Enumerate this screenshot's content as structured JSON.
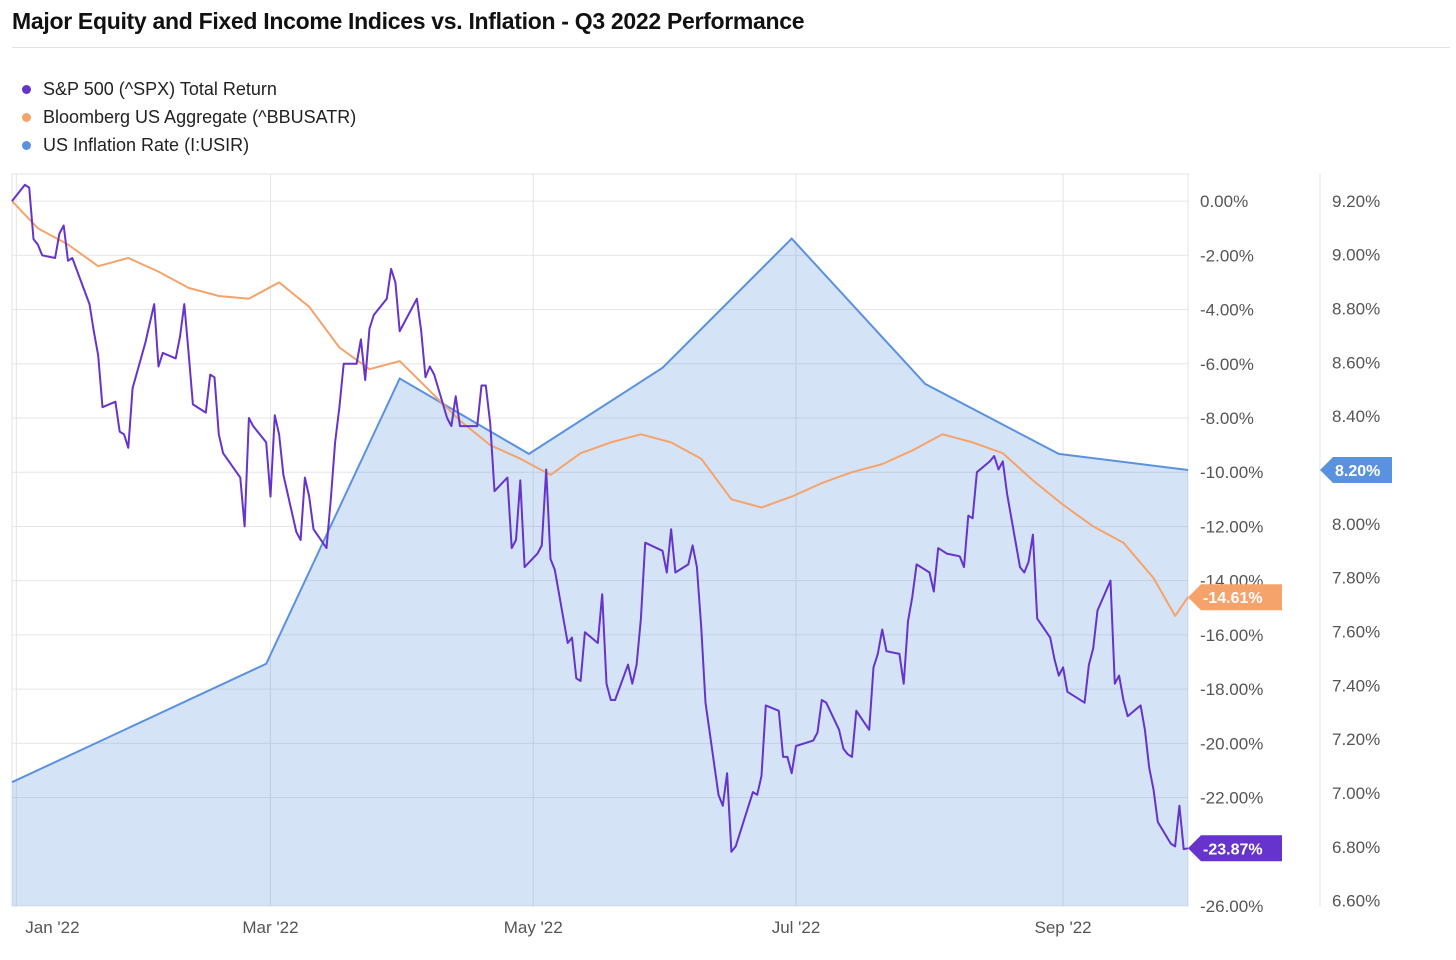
{
  "chart_data": {
    "type": "line",
    "title": "Major Equity and Fixed Income Indices vs. Inflation - Q3 2022 Performance",
    "x_ticks": [
      "Jan '22",
      "Mar '22",
      "May '22",
      "Jul '22",
      "Sep '22"
    ],
    "left_axis": {
      "ticks": [
        "0.00%",
        "-2.00%",
        "-4.00%",
        "-6.00%",
        "-8.00%",
        "-10.00%",
        "-12.00%",
        "-14.00%",
        "-16.00%",
        "-18.00%",
        "-20.00%",
        "-22.00%",
        "-26.00%"
      ],
      "range": [
        -26,
        1
      ]
    },
    "right_axis": {
      "ticks": [
        "9.20%",
        "9.00%",
        "8.80%",
        "8.60%",
        "8.40%",
        "8.00%",
        "7.80%",
        "7.60%",
        "7.40%",
        "7.20%",
        "7.00%",
        "6.80%",
        "6.60%"
      ],
      "range": [
        6.58,
        9.3
      ]
    },
    "legend_position": "top-left",
    "grid": true,
    "series": [
      {
        "name": "S&P 500 (^SPX) Total Return",
        "color": "#6633cc",
        "axis": "left",
        "end_label": "-23.87%",
        "points": [
          [
            "2021-12-31",
            0.0
          ],
          [
            "2022-01-03",
            0.6
          ],
          [
            "2022-01-04",
            0.5
          ],
          [
            "2022-01-05",
            -1.4
          ],
          [
            "2022-01-06",
            -1.6
          ],
          [
            "2022-01-07",
            -2.0
          ],
          [
            "2022-01-10",
            -2.1
          ],
          [
            "2022-01-11",
            -1.2
          ],
          [
            "2022-01-12",
            -0.9
          ],
          [
            "2022-01-13",
            -2.2
          ],
          [
            "2022-01-14",
            -2.1
          ],
          [
            "2022-01-18",
            -3.8
          ],
          [
            "2022-01-19",
            -4.8
          ],
          [
            "2022-01-20",
            -5.7
          ],
          [
            "2022-01-21",
            -7.6
          ],
          [
            "2022-01-24",
            -7.4
          ],
          [
            "2022-01-25",
            -8.5
          ],
          [
            "2022-01-26",
            -8.6
          ],
          [
            "2022-01-27",
            -9.1
          ],
          [
            "2022-01-28",
            -6.9
          ],
          [
            "2022-01-31",
            -5.2
          ],
          [
            "2022-02-01",
            -4.5
          ],
          [
            "2022-02-02",
            -3.8
          ],
          [
            "2022-02-03",
            -6.1
          ],
          [
            "2022-02-04",
            -5.6
          ],
          [
            "2022-02-07",
            -5.8
          ],
          [
            "2022-02-08",
            -5.0
          ],
          [
            "2022-02-09",
            -3.8
          ],
          [
            "2022-02-10",
            -5.6
          ],
          [
            "2022-02-11",
            -7.5
          ],
          [
            "2022-02-14",
            -7.8
          ],
          [
            "2022-02-15",
            -6.4
          ],
          [
            "2022-02-16",
            -6.5
          ],
          [
            "2022-02-17",
            -8.6
          ],
          [
            "2022-02-18",
            -9.3
          ],
          [
            "2022-02-22",
            -10.2
          ],
          [
            "2022-02-23",
            -12.0
          ],
          [
            "2022-02-24",
            -8.0
          ],
          [
            "2022-02-25",
            -8.3
          ],
          [
            "2022-02-28",
            -8.9
          ],
          [
            "2022-03-01",
            -10.9
          ],
          [
            "2022-03-02",
            -7.9
          ],
          [
            "2022-03-03",
            -8.6
          ],
          [
            "2022-03-04",
            -10.1
          ],
          [
            "2022-03-07",
            -12.2
          ],
          [
            "2022-03-08",
            -12.5
          ],
          [
            "2022-03-09",
            -10.2
          ],
          [
            "2022-03-10",
            -10.9
          ],
          [
            "2022-03-11",
            -12.1
          ],
          [
            "2022-03-14",
            -12.8
          ],
          [
            "2022-03-15",
            -11.0
          ],
          [
            "2022-03-16",
            -8.9
          ],
          [
            "2022-03-17",
            -7.6
          ],
          [
            "2022-03-18",
            -6.0
          ],
          [
            "2022-03-21",
            -6.0
          ],
          [
            "2022-03-22",
            -5.1
          ],
          [
            "2022-03-23",
            -6.6
          ],
          [
            "2022-03-24",
            -4.7
          ],
          [
            "2022-03-25",
            -4.2
          ],
          [
            "2022-03-28",
            -3.6
          ],
          [
            "2022-03-29",
            -2.5
          ],
          [
            "2022-03-30",
            -3.0
          ],
          [
            "2022-03-31",
            -4.8
          ],
          [
            "2022-04-01",
            -4.5
          ],
          [
            "2022-04-04",
            -3.6
          ],
          [
            "2022-04-05",
            -4.8
          ],
          [
            "2022-04-06",
            -6.5
          ],
          [
            "2022-04-07",
            -6.1
          ],
          [
            "2022-04-08",
            -6.4
          ],
          [
            "2022-04-11",
            -8.0
          ],
          [
            "2022-04-12",
            -8.3
          ],
          [
            "2022-04-13",
            -7.2
          ],
          [
            "2022-04-14",
            -8.3
          ],
          [
            "2022-04-18",
            -8.3
          ],
          [
            "2022-04-19",
            -6.8
          ],
          [
            "2022-04-20",
            -6.8
          ],
          [
            "2022-04-21",
            -8.2
          ],
          [
            "2022-04-22",
            -10.7
          ],
          [
            "2022-04-25",
            -10.2
          ],
          [
            "2022-04-26",
            -12.8
          ],
          [
            "2022-04-27",
            -12.5
          ],
          [
            "2022-04-28",
            -10.3
          ],
          [
            "2022-04-29",
            -13.5
          ],
          [
            "2022-05-02",
            -13.0
          ],
          [
            "2022-05-03",
            -12.7
          ],
          [
            "2022-05-04",
            -9.9
          ],
          [
            "2022-05-05",
            -13.2
          ],
          [
            "2022-05-06",
            -13.6
          ],
          [
            "2022-05-09",
            -16.3
          ],
          [
            "2022-05-10",
            -16.1
          ],
          [
            "2022-05-11",
            -17.6
          ],
          [
            "2022-05-12",
            -17.7
          ],
          [
            "2022-05-13",
            -15.9
          ],
          [
            "2022-05-16",
            -16.3
          ],
          [
            "2022-05-17",
            -14.5
          ],
          [
            "2022-05-18",
            -17.8
          ],
          [
            "2022-05-19",
            -18.4
          ],
          [
            "2022-05-20",
            -18.4
          ],
          [
            "2022-05-23",
            -17.1
          ],
          [
            "2022-05-24",
            -17.8
          ],
          [
            "2022-05-25",
            -17.1
          ],
          [
            "2022-05-26",
            -15.4
          ],
          [
            "2022-05-27",
            -12.6
          ],
          [
            "2022-05-31",
            -12.9
          ],
          [
            "2022-06-01",
            -13.7
          ],
          [
            "2022-06-02",
            -12.1
          ],
          [
            "2022-06-03",
            -13.7
          ],
          [
            "2022-06-06",
            -13.4
          ],
          [
            "2022-06-07",
            -12.7
          ],
          [
            "2022-06-08",
            -13.5
          ],
          [
            "2022-06-09",
            -15.7
          ],
          [
            "2022-06-10",
            -18.5
          ],
          [
            "2022-06-13",
            -21.9
          ],
          [
            "2022-06-14",
            -22.3
          ],
          [
            "2022-06-15",
            -21.1
          ],
          [
            "2022-06-16",
            -24.0
          ],
          [
            "2022-06-17",
            -23.8
          ],
          [
            "2022-06-21",
            -21.8
          ],
          [
            "2022-06-22",
            -21.9
          ],
          [
            "2022-06-23",
            -21.2
          ],
          [
            "2022-06-24",
            -18.6
          ],
          [
            "2022-06-27",
            -18.8
          ],
          [
            "2022-06-28",
            -20.5
          ],
          [
            "2022-06-29",
            -20.5
          ],
          [
            "2022-06-30",
            -21.1
          ],
          [
            "2022-07-01",
            -20.1
          ],
          [
            "2022-07-05",
            -19.9
          ],
          [
            "2022-07-06",
            -19.6
          ],
          [
            "2022-07-07",
            -18.4
          ],
          [
            "2022-07-08",
            -18.5
          ],
          [
            "2022-07-11",
            -19.5
          ],
          [
            "2022-07-12",
            -20.2
          ],
          [
            "2022-07-13",
            -20.4
          ],
          [
            "2022-07-14",
            -20.5
          ],
          [
            "2022-07-15",
            -18.8
          ],
          [
            "2022-07-18",
            -19.5
          ],
          [
            "2022-07-19",
            -17.2
          ],
          [
            "2022-07-20",
            -16.7
          ],
          [
            "2022-07-21",
            -15.8
          ],
          [
            "2022-07-22",
            -16.6
          ],
          [
            "2022-07-25",
            -16.7
          ],
          [
            "2022-07-26",
            -17.8
          ],
          [
            "2022-07-27",
            -15.5
          ],
          [
            "2022-07-28",
            -14.6
          ],
          [
            "2022-07-29",
            -13.4
          ],
          [
            "2022-08-01",
            -13.7
          ],
          [
            "2022-08-02",
            -14.4
          ],
          [
            "2022-08-03",
            -12.8
          ],
          [
            "2022-08-04",
            -12.9
          ],
          [
            "2022-08-05",
            -13.0
          ],
          [
            "2022-08-08",
            -13.1
          ],
          [
            "2022-08-09",
            -13.5
          ],
          [
            "2022-08-10",
            -11.6
          ],
          [
            "2022-08-11",
            -11.7
          ],
          [
            "2022-08-12",
            -10.0
          ],
          [
            "2022-08-15",
            -9.6
          ],
          [
            "2022-08-16",
            -9.4
          ],
          [
            "2022-08-17",
            -9.9
          ],
          [
            "2022-08-18",
            -9.6
          ],
          [
            "2022-08-19",
            -10.8
          ],
          [
            "2022-08-22",
            -13.5
          ],
          [
            "2022-08-23",
            -13.7
          ],
          [
            "2022-08-24",
            -13.3
          ],
          [
            "2022-08-25",
            -12.3
          ],
          [
            "2022-08-26",
            -15.4
          ],
          [
            "2022-08-29",
            -16.1
          ],
          [
            "2022-08-30",
            -16.9
          ],
          [
            "2022-08-31",
            -17.5
          ],
          [
            "2022-09-01",
            -17.2
          ],
          [
            "2022-09-02",
            -18.1
          ],
          [
            "2022-09-06",
            -18.5
          ],
          [
            "2022-09-07",
            -17.1
          ],
          [
            "2022-09-08",
            -16.5
          ],
          [
            "2022-09-09",
            -15.1
          ],
          [
            "2022-09-12",
            -14.0
          ],
          [
            "2022-09-13",
            -17.8
          ],
          [
            "2022-09-14",
            -17.5
          ],
          [
            "2022-09-15",
            -18.4
          ],
          [
            "2022-09-16",
            -19.0
          ],
          [
            "2022-09-19",
            -18.6
          ],
          [
            "2022-09-20",
            -19.5
          ],
          [
            "2022-09-21",
            -20.9
          ],
          [
            "2022-09-22",
            -21.7
          ],
          [
            "2022-09-23",
            -22.9
          ],
          [
            "2022-09-26",
            -23.7
          ],
          [
            "2022-09-27",
            -23.8
          ],
          [
            "2022-09-28",
            -22.3
          ],
          [
            "2022-09-29",
            -23.9
          ],
          [
            "2022-09-30",
            -23.87
          ]
        ]
      },
      {
        "name": "Bloomberg US Aggregate (^BBUSATR)",
        "color": "#f5a36b",
        "axis": "left",
        "end_label": "-14.61%",
        "points": [
          [
            "2021-12-31",
            0.0
          ],
          [
            "2022-01-06",
            -1.0
          ],
          [
            "2022-01-13",
            -1.6
          ],
          [
            "2022-01-20",
            -2.4
          ],
          [
            "2022-01-27",
            -2.1
          ],
          [
            "2022-02-03",
            -2.6
          ],
          [
            "2022-02-10",
            -3.2
          ],
          [
            "2022-02-17",
            -3.5
          ],
          [
            "2022-02-24",
            -3.6
          ],
          [
            "2022-03-03",
            -3.0
          ],
          [
            "2022-03-10",
            -3.9
          ],
          [
            "2022-03-17",
            -5.4
          ],
          [
            "2022-03-24",
            -6.2
          ],
          [
            "2022-03-31",
            -5.9
          ],
          [
            "2022-04-07",
            -7.0
          ],
          [
            "2022-04-14",
            -8.1
          ],
          [
            "2022-04-21",
            -9.0
          ],
          [
            "2022-04-28",
            -9.5
          ],
          [
            "2022-05-05",
            -10.1
          ],
          [
            "2022-05-12",
            -9.3
          ],
          [
            "2022-05-19",
            -8.9
          ],
          [
            "2022-05-26",
            -8.6
          ],
          [
            "2022-06-02",
            -8.9
          ],
          [
            "2022-06-09",
            -9.5
          ],
          [
            "2022-06-16",
            -11.0
          ],
          [
            "2022-06-23",
            -11.3
          ],
          [
            "2022-06-30",
            -10.9
          ],
          [
            "2022-07-07",
            -10.4
          ],
          [
            "2022-07-14",
            -10.0
          ],
          [
            "2022-07-21",
            -9.7
          ],
          [
            "2022-07-28",
            -9.2
          ],
          [
            "2022-08-04",
            -8.6
          ],
          [
            "2022-08-11",
            -8.9
          ],
          [
            "2022-08-18",
            -9.3
          ],
          [
            "2022-08-25",
            -10.3
          ],
          [
            "2022-09-01",
            -11.2
          ],
          [
            "2022-09-08",
            -12.0
          ],
          [
            "2022-09-15",
            -12.6
          ],
          [
            "2022-09-22",
            -13.9
          ],
          [
            "2022-09-27",
            -15.3
          ],
          [
            "2022-09-30",
            -14.61
          ]
        ]
      },
      {
        "name": "US Inflation Rate (I:USIR)",
        "color": "#5b92e0",
        "axis": "right",
        "type": "area",
        "end_label": "8.20%",
        "points": [
          [
            "2021-12-31",
            7.04
          ],
          [
            "2022-02-28",
            7.48
          ],
          [
            "2022-03-31",
            8.54
          ],
          [
            "2022-04-30",
            8.26
          ],
          [
            "2022-05-31",
            8.58
          ],
          [
            "2022-06-30",
            9.06
          ],
          [
            "2022-07-31",
            8.52
          ],
          [
            "2022-08-31",
            8.26
          ],
          [
            "2022-09-30",
            8.2
          ]
        ]
      }
    ]
  }
}
